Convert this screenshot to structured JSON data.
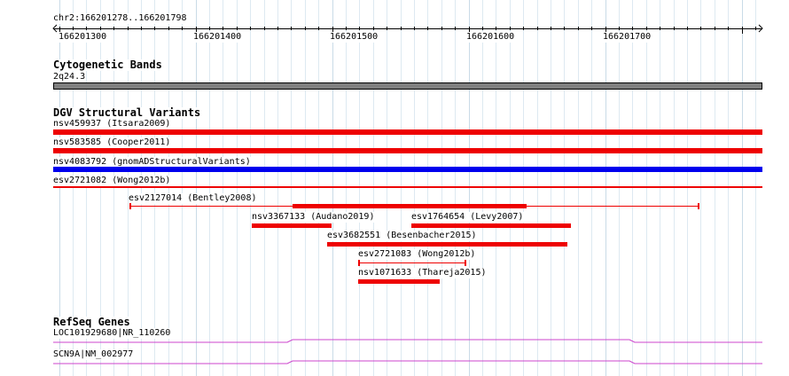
{
  "ruler": {
    "region_label": "chr2:166201278..166201798",
    "tick_labels": [
      "166201300",
      "166201400",
      "166201500",
      "166201600",
      "166201700"
    ]
  },
  "cytoband": {
    "title": "Cytogenetic Bands",
    "band_label": "2q24.3",
    "band_color": "#7f7f7f"
  },
  "dgv": {
    "title": "DGV Structural Variants",
    "colors": {
      "loss": "#ee0000",
      "gain": "#0000ee"
    },
    "features": [
      {
        "label": "nsv459937 (Itsara2009)",
        "kind": "loss"
      },
      {
        "label": "nsv583585 (Cooper2011)",
        "kind": "loss"
      },
      {
        "label": "nsv4083792 (gnomADStructuralVariants)",
        "kind": "gain"
      },
      {
        "label": "esv2721082 (Wong2012b)",
        "kind": "loss"
      },
      {
        "label": "esv2127014 (Bentley2008)",
        "kind": "loss"
      },
      {
        "label": "nsv3367133 (Audano2019)",
        "kind": "loss"
      },
      {
        "label": "esv1764654 (Levy2007)",
        "kind": "loss"
      },
      {
        "label": "esv3682551 (Besenbacher2015)",
        "kind": "loss"
      },
      {
        "label": "esv2721083 (Wong2012b)",
        "kind": "loss"
      },
      {
        "label": "nsv1071633 (Thareja2015)",
        "kind": "loss"
      }
    ]
  },
  "refseq": {
    "title": "RefSeq Genes",
    "color": "#cc44cc",
    "genes": [
      {
        "label": "LOC101929680|NR_110260"
      },
      {
        "label": "SCN9A|NM_002977"
      }
    ]
  }
}
